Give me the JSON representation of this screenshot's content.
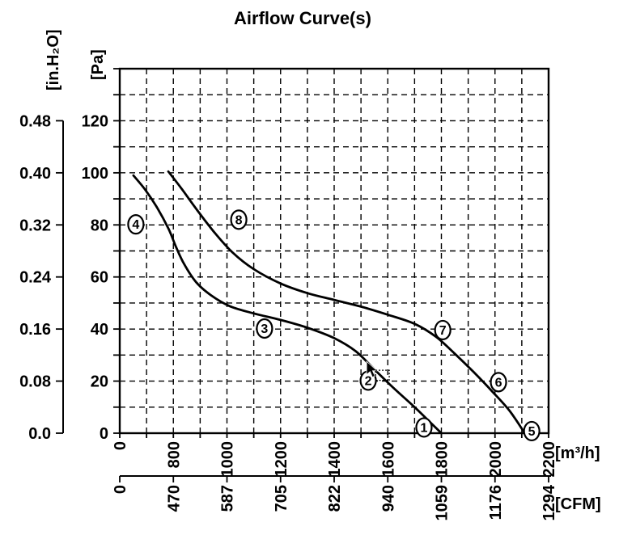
{
  "chart_data": {
    "type": "line",
    "title": "Airflow Curve(s)",
    "background": "#ffffff",
    "ink_color": "#000000",
    "grid": {
      "style": "dashed",
      "x_step_m3h": 100,
      "y_step_pa": 10
    },
    "x_axis_m3h": {
      "unit": "[m³/h]",
      "plot_range": [
        600,
        2200
      ],
      "ticks": [
        {
          "label": "0",
          "pos": 600
        },
        {
          "label": "800",
          "pos": 800
        },
        {
          "label": "1000",
          "pos": 1000
        },
        {
          "label": "1200",
          "pos": 1200
        },
        {
          "label": "1400",
          "pos": 1400
        },
        {
          "label": "1600",
          "pos": 1600
        },
        {
          "label": "1800",
          "pos": 1800
        },
        {
          "label": "2000",
          "pos": 2000
        },
        {
          "label": "2200",
          "pos": 2200
        }
      ]
    },
    "x_axis_cfm": {
      "unit": "[CFM]",
      "ticks": [
        {
          "label": "0",
          "pos": 600
        },
        {
          "label": "470",
          "pos": 800
        },
        {
          "label": "587",
          "pos": 1000
        },
        {
          "label": "705",
          "pos": 1200
        },
        {
          "label": "822",
          "pos": 1400
        },
        {
          "label": "940",
          "pos": 1600
        },
        {
          "label": "1059",
          "pos": 1800
        },
        {
          "label": "1176",
          "pos": 2000
        },
        {
          "label": "1294",
          "pos": 2200
        }
      ]
    },
    "y_axis_pa": {
      "unit": "[Pa]",
      "plot_range": [
        0,
        140
      ],
      "ticks": [
        {
          "label": "120",
          "value": 120
        },
        {
          "label": "100",
          "value": 100
        },
        {
          "label": "80",
          "value": 80
        },
        {
          "label": "60",
          "value": 60
        },
        {
          "label": "40",
          "value": 40
        },
        {
          "label": "20",
          "value": 20
        },
        {
          "label": "0",
          "value": 0
        }
      ]
    },
    "y_axis_inh2o": {
      "unit": "[in.H₂O]",
      "ticks": [
        {
          "label": "0.48",
          "value": 120
        },
        {
          "label": "0.40",
          "value": 100
        },
        {
          "label": "0.32",
          "value": 80
        },
        {
          "label": "0.24",
          "value": 60
        },
        {
          "label": "0.16",
          "value": 40
        },
        {
          "label": "0.08",
          "value": 20
        },
        {
          "label": "0.0",
          "value": 0
        }
      ]
    },
    "series": [
      {
        "name": "curve-4-3-2-1",
        "points": [
          [
            651,
            99
          ],
          [
            695,
            93.5
          ],
          [
            740,
            86.5
          ],
          [
            782,
            78.5
          ],
          [
            810,
            71.5
          ],
          [
            840,
            65
          ],
          [
            885,
            58
          ],
          [
            940,
            53
          ],
          [
            1010,
            48.8
          ],
          [
            1100,
            46
          ],
          [
            1200,
            43.5
          ],
          [
            1300,
            40.5
          ],
          [
            1400,
            36.5
          ],
          [
            1480,
            31.5
          ],
          [
            1550,
            24.5
          ],
          [
            1620,
            17.5
          ],
          [
            1700,
            10
          ],
          [
            1765,
            3.5
          ],
          [
            1800,
            0
          ]
        ]
      },
      {
        "name": "curve-8-7-6-5",
        "points": [
          [
            781,
            100.5
          ],
          [
            830,
            94
          ],
          [
            890,
            85.5
          ],
          [
            950,
            77.5
          ],
          [
            1020,
            69.5
          ],
          [
            1100,
            63
          ],
          [
            1200,
            57.5
          ],
          [
            1300,
            53.8
          ],
          [
            1400,
            51.2
          ],
          [
            1500,
            48.6
          ],
          [
            1600,
            45.5
          ],
          [
            1700,
            42
          ],
          [
            1780,
            37
          ],
          [
            1850,
            30.5
          ],
          [
            1920,
            23.5
          ],
          [
            1990,
            16
          ],
          [
            2055,
            8.5
          ],
          [
            2111,
            0
          ]
        ]
      }
    ],
    "markers": [
      {
        "label": "1",
        "x": 1735,
        "y": 2.2
      },
      {
        "label": "2",
        "x": 1527,
        "y": 20.2
      },
      {
        "label": "3",
        "x": 1140,
        "y": 40.2
      },
      {
        "label": "4",
        "x": 660,
        "y": 80.2
      },
      {
        "label": "5",
        "x": 2137,
        "y": 0.8
      },
      {
        "label": "6",
        "x": 2013,
        "y": 19.6
      },
      {
        "label": "7",
        "x": 1805,
        "y": 39.6
      },
      {
        "label": "8",
        "x": 1044,
        "y": 82
      }
    ],
    "cursor": {
      "x_m3h": 1521,
      "y_pa": 27.6
    }
  }
}
